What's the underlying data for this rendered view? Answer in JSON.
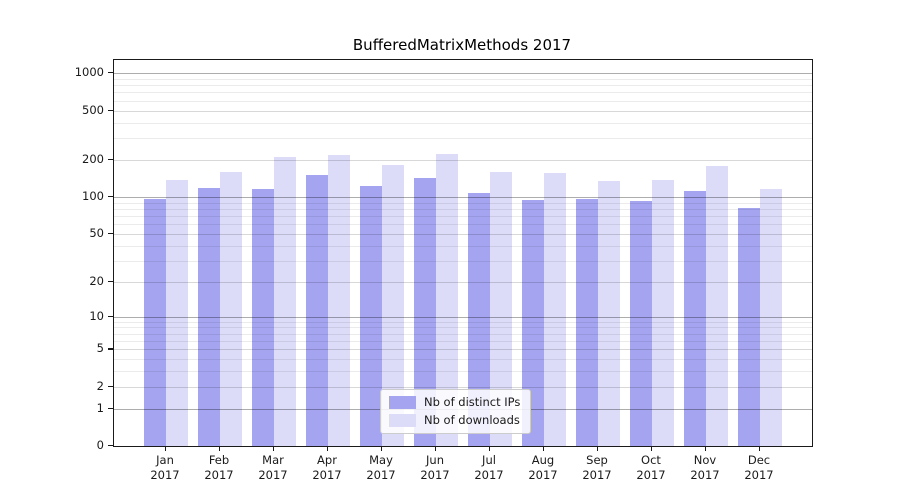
{
  "chart_data": {
    "type": "bar",
    "title": "BufferedMatrixMethods 2017",
    "categories": [
      "Jan",
      "Feb",
      "Mar",
      "Apr",
      "May",
      "Jun",
      "Jul",
      "Aug",
      "Sep",
      "Oct",
      "Nov",
      "Dec"
    ],
    "category_year": "2017",
    "series": [
      {
        "name": "Nb of distinct IPs",
        "color": "#a4a4f0",
        "values": [
          96,
          118,
          116,
          151,
          122,
          144,
          108,
          94,
          97,
          92,
          111,
          81
        ]
      },
      {
        "name": "Nb of downloads",
        "color": "#dcdcf9",
        "values": [
          137,
          161,
          211,
          219,
          181,
          224,
          161,
          157,
          136,
          137,
          177,
          116
        ]
      }
    ],
    "y_scale": "log1p",
    "y_ticks": [
      1000,
      500,
      200,
      100,
      50,
      20,
      10,
      5,
      2,
      1,
      0
    ],
    "y_major_gridlines": [
      1,
      10,
      100,
      1000
    ],
    "ylim": [
      0,
      1280
    ],
    "xlabel": "",
    "ylabel": "",
    "grid": "horizontal",
    "legend_position": "bottom-center-inside"
  },
  "colors": {
    "background": "#ffffff",
    "spine": "#1a1a1a",
    "major_gridline": "rgba(0,0,0,0.32)",
    "minor_gridline": "rgba(0,0,0,0.08)",
    "text": "#1a1a1a"
  }
}
